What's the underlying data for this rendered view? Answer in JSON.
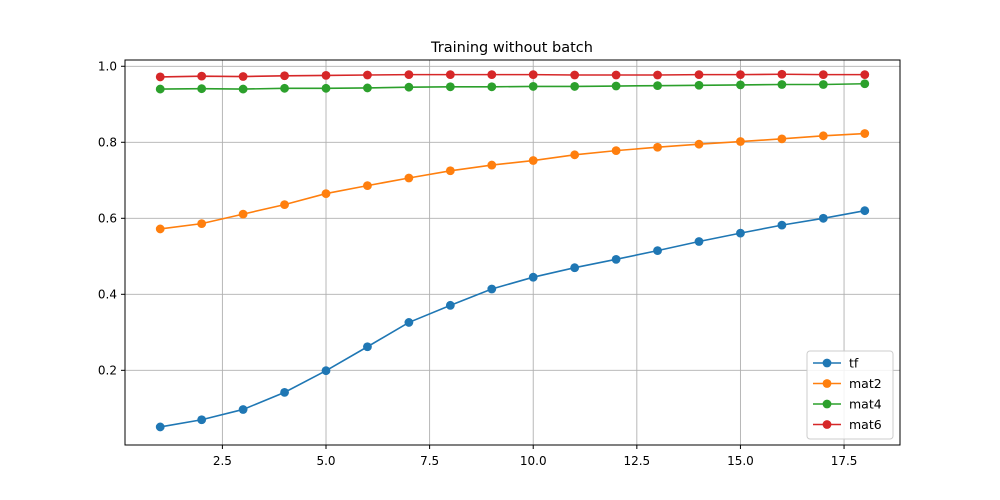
{
  "chart_data": {
    "type": "line",
    "title": "Training without batch",
    "xlabel": "",
    "ylabel": "",
    "xlim": [
      0.15,
      18.85
    ],
    "ylim": [
      0.0035,
      1.0165
    ],
    "xticks": [
      2.5,
      5.0,
      7.5,
      10.0,
      12.5,
      15.0,
      17.5
    ],
    "xtick_labels": [
      "2.5",
      "5.0",
      "7.5",
      "10.0",
      "12.5",
      "15.0",
      "17.5"
    ],
    "yticks": [
      0.2,
      0.4,
      0.6,
      0.8,
      1.0
    ],
    "ytick_labels": [
      "0.2",
      "0.4",
      "0.6",
      "0.8",
      "1.0"
    ],
    "grid": true,
    "legend_position": "lower-right",
    "x": [
      1,
      2,
      3,
      4,
      5,
      6,
      7,
      8,
      9,
      10,
      11,
      12,
      13,
      14,
      15,
      16,
      17,
      18
    ],
    "series": [
      {
        "name": "tf",
        "color": "#1f77b4",
        "values": [
          0.051,
          0.07,
          0.097,
          0.142,
          0.199,
          0.262,
          0.326,
          0.371,
          0.414,
          0.445,
          0.47,
          0.492,
          0.515,
          0.539,
          0.561,
          0.582,
          0.6,
          0.62
        ]
      },
      {
        "name": "mat2",
        "color": "#ff7f0e",
        "values": [
          0.572,
          0.586,
          0.611,
          0.636,
          0.665,
          0.686,
          0.706,
          0.725,
          0.74,
          0.752,
          0.767,
          0.778,
          0.787,
          0.795,
          0.802,
          0.809,
          0.817,
          0.823
        ]
      },
      {
        "name": "mat4",
        "color": "#2ca02c",
        "values": [
          0.94,
          0.941,
          0.94,
          0.942,
          0.942,
          0.943,
          0.945,
          0.946,
          0.946,
          0.947,
          0.947,
          0.948,
          0.949,
          0.95,
          0.951,
          0.952,
          0.952,
          0.954
        ]
      },
      {
        "name": "mat6",
        "color": "#d62728",
        "values": [
          0.972,
          0.974,
          0.973,
          0.975,
          0.976,
          0.977,
          0.978,
          0.978,
          0.978,
          0.978,
          0.977,
          0.977,
          0.977,
          0.978,
          0.978,
          0.979,
          0.978,
          0.978
        ]
      }
    ]
  }
}
